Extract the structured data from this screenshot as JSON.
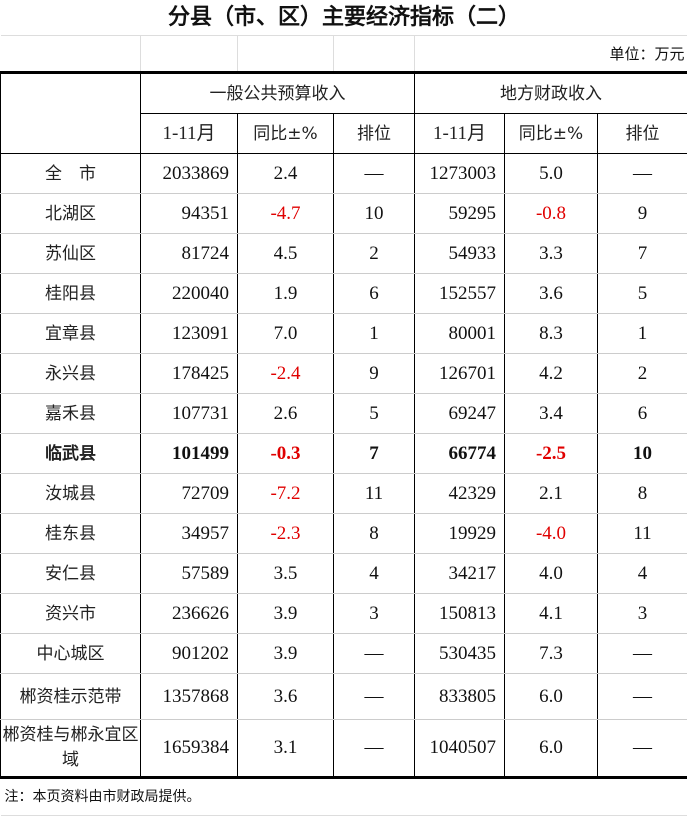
{
  "title": "分县（市、区）主要经济指标（二）",
  "unit": "单位：万元",
  "groups": [
    "一般公共预算收入",
    "地方财政收入"
  ],
  "subheaders": [
    "1-11月",
    "同比±%",
    "排位",
    "1-11月",
    "同比±%",
    "排位"
  ],
  "rows": [
    {
      "name": "全　市",
      "v1": "2033869",
      "p1": "2.4",
      "r1": "—",
      "v2": "1273003",
      "p2": "5.0",
      "r2": "—"
    },
    {
      "name": "北湖区",
      "v1": "94351",
      "p1": "-4.7",
      "r1": "10",
      "v2": "59295",
      "p2": "-0.8",
      "r2": "9"
    },
    {
      "name": "苏仙区",
      "v1": "81724",
      "p1": "4.5",
      "r1": "2",
      "v2": "54933",
      "p2": "3.3",
      "r2": "7"
    },
    {
      "name": "桂阳县",
      "v1": "220040",
      "p1": "1.9",
      "r1": "6",
      "v2": "152557",
      "p2": "3.6",
      "r2": "5"
    },
    {
      "name": "宜章县",
      "v1": "123091",
      "p1": "7.0",
      "r1": "1",
      "v2": "80001",
      "p2": "8.3",
      "r2": "1"
    },
    {
      "name": "永兴县",
      "v1": "178425",
      "p1": "-2.4",
      "r1": "9",
      "v2": "126701",
      "p2": "4.2",
      "r2": "2"
    },
    {
      "name": "嘉禾县",
      "v1": "107731",
      "p1": "2.6",
      "r1": "5",
      "v2": "69247",
      "p2": "3.4",
      "r2": "6"
    },
    {
      "name": "临武县",
      "v1": "101499",
      "p1": "-0.3",
      "r1": "7",
      "v2": "66774",
      "p2": "-2.5",
      "r2": "10",
      "bold": true
    },
    {
      "name": "汝城县",
      "v1": "72709",
      "p1": "-7.2",
      "r1": "11",
      "v2": "42329",
      "p2": "2.1",
      "r2": "8"
    },
    {
      "name": "桂东县",
      "v1": "34957",
      "p1": "-2.3",
      "r1": "8",
      "v2": "19929",
      "p2": "-4.0",
      "r2": "11"
    },
    {
      "name": "安仁县",
      "v1": "57589",
      "p1": "3.5",
      "r1": "4",
      "v2": "34217",
      "p2": "4.0",
      "r2": "4"
    },
    {
      "name": "资兴市",
      "v1": "236626",
      "p1": "3.9",
      "r1": "3",
      "v2": "150813",
      "p2": "4.1",
      "r2": "3"
    },
    {
      "name": "中心城区",
      "v1": "901202",
      "p1": "3.9",
      "r1": "—",
      "v2": "530435",
      "p2": "7.3",
      "r2": "—"
    },
    {
      "name": "郴资桂示范带",
      "v1": "1357868",
      "p1": "3.6",
      "r1": "—",
      "v2": "833805",
      "p2": "6.0",
      "r2": "—"
    },
    {
      "name": "郴资桂与郴永宜区域",
      "v1": "1659384",
      "p1": "3.1",
      "r1": "—",
      "v2": "1040507",
      "p2": "6.0",
      "r2": "—"
    }
  ],
  "note": "注：本页资料由市财政局提供。",
  "colors": {
    "negative": "#e00000"
  }
}
